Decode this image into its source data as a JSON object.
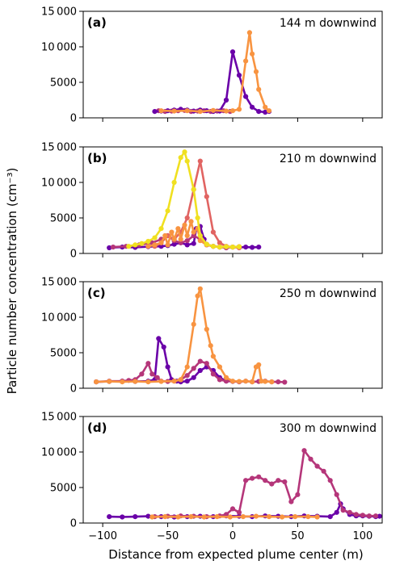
{
  "figure": {
    "xlabel": "Distance from expected plume center (m)",
    "ylabel": "Particle number concentration (cm⁻³)"
  },
  "chart_data": [
    {
      "type": "line",
      "panel_label": "(a)",
      "title": "144 m downwind",
      "xlim": [
        -115,
        115
      ],
      "ylim": [
        0,
        15000
      ],
      "x_ticks": [
        -100,
        -50,
        0,
        50,
        100
      ],
      "x_tick_labels": [
        "",
        "",
        "",
        "",
        ""
      ],
      "y_ticks": [
        0,
        5000,
        10000,
        15000
      ],
      "y_tick_labels": [
        "0",
        "5000",
        "10 000",
        "15 000"
      ],
      "series": [
        {
          "color": "#b5367a",
          "x": [
            -57,
            -52,
            -47,
            -42,
            -37,
            -32,
            -27,
            -22,
            -17,
            -12,
            -7,
            -2
          ],
          "y": [
            1000,
            900,
            950,
            1000,
            1050,
            900,
            950,
            1000,
            900,
            950,
            1000,
            900
          ]
        },
        {
          "color": "#6a00a8",
          "x": [
            -60,
            -55,
            -50,
            -45,
            -40,
            -35,
            -30,
            -25,
            -20,
            -15,
            -10,
            -5,
            0,
            5,
            10,
            15,
            20,
            25,
            28
          ],
          "y": [
            900,
            950,
            1000,
            1100,
            1200,
            1100,
            950,
            1100,
            1000,
            900,
            950,
            2500,
            9300,
            6000,
            3000,
            1500,
            900,
            800,
            900
          ]
        },
        {
          "color": "#f89441",
          "x": [
            -55,
            -45,
            -35,
            -25,
            -15,
            -5,
            0,
            5,
            10,
            13,
            15,
            18,
            20,
            25,
            28
          ],
          "y": [
            1000,
            950,
            1000,
            900,
            1050,
            950,
            1000,
            1200,
            8000,
            12000,
            9000,
            6500,
            4000,
            1500,
            1000
          ]
        }
      ]
    },
    {
      "type": "line",
      "panel_label": "(b)",
      "title": "210 m downwind",
      "xlim": [
        -115,
        115
      ],
      "ylim": [
        0,
        15000
      ],
      "x_ticks": [
        -100,
        -50,
        0,
        50,
        100
      ],
      "x_tick_labels": [
        "",
        "",
        "",
        "",
        ""
      ],
      "y_ticks": [
        0,
        5000,
        10000,
        15000
      ],
      "y_tick_labels": [
        "0",
        "5000",
        "10 000",
        "15 000"
      ],
      "series": [
        {
          "color": "#6a00a8",
          "x": [
            -95,
            -85,
            -75,
            -65,
            -55,
            -50,
            -45,
            -40,
            -35,
            -30,
            -28,
            -25,
            -22,
            -20,
            -15,
            -10,
            -5,
            0,
            5,
            10,
            15,
            20
          ],
          "y": [
            800,
            900,
            850,
            950,
            1000,
            1100,
            1300,
            1500,
            1200,
            1400,
            3500,
            3800,
            2000,
            1200,
            1000,
            900,
            950,
            900,
            850,
            900,
            850,
            900
          ]
        },
        {
          "color": "#b5367a",
          "x": [
            -92,
            -82,
            -72,
            -62,
            -55,
            -50,
            -45,
            -40,
            -35,
            -30,
            -25,
            -20,
            -15,
            -10,
            -5,
            0,
            5
          ],
          "y": [
            900,
            1000,
            1200,
            1500,
            2000,
            2500,
            1800,
            1500,
            1800,
            2500,
            2000,
            1300,
            1000,
            900,
            800,
            900,
            950
          ]
        },
        {
          "color": "#e16462",
          "x": [
            -60,
            -55,
            -50,
            -45,
            -40,
            -35,
            -30,
            -25,
            -20,
            -15,
            -10,
            -5,
            0,
            5
          ],
          "y": [
            1000,
            1500,
            2500,
            2000,
            3000,
            5000,
            9000,
            13000,
            8000,
            3000,
            1500,
            1000,
            900,
            800
          ]
        },
        {
          "color": "#f89441",
          "x": [
            -65,
            -60,
            -55,
            -52,
            -50,
            -47,
            -45,
            -42,
            -40,
            -37,
            -35,
            -32,
            -30,
            -27,
            -25,
            -20,
            -15,
            -10,
            -5,
            0,
            5
          ],
          "y": [
            1000,
            1200,
            1500,
            2500,
            1200,
            3000,
            2000,
            3500,
            2000,
            4000,
            2500,
            4500,
            3000,
            3500,
            1800,
            1200,
            1000,
            900,
            950,
            900,
            900
          ]
        },
        {
          "color": "#f0e020",
          "x": [
            -80,
            -75,
            -70,
            -65,
            -60,
            -55,
            -50,
            -45,
            -40,
            -37,
            -35,
            -30,
            -27,
            -25,
            -20,
            -15,
            -10,
            -5,
            0,
            5
          ],
          "y": [
            1000,
            1200,
            1400,
            1700,
            2200,
            3500,
            6000,
            10000,
            13500,
            14300,
            13000,
            9000,
            5000,
            2500,
            1300,
            1000,
            900,
            950,
            900,
            950
          ]
        }
      ]
    },
    {
      "type": "line",
      "panel_label": "(c)",
      "title": "250 m downwind",
      "xlim": [
        -115,
        115
      ],
      "ylim": [
        0,
        15000
      ],
      "x_ticks": [
        -100,
        -50,
        0,
        50,
        100
      ],
      "x_tick_labels": [
        "",
        "",
        "",
        "",
        ""
      ],
      "y_ticks": [
        0,
        5000,
        10000,
        15000
      ],
      "y_tick_labels": [
        "0",
        "5000",
        "10 000",
        "15 000"
      ],
      "series": [
        {
          "color": "#6a00a8",
          "x": [
            -105,
            -95,
            -85,
            -75,
            -65,
            -60,
            -57,
            -53,
            -50,
            -47,
            -43,
            -40,
            -35,
            -30,
            -25,
            -20,
            -15,
            -10,
            -5
          ],
          "y": [
            900,
            950,
            1000,
            950,
            1000,
            1200,
            7000,
            5800,
            3000,
            1200,
            1000,
            900,
            1000,
            1500,
            2500,
            3000,
            2500,
            1500,
            1000
          ]
        },
        {
          "color": "#b5367a",
          "x": [
            -105,
            -95,
            -85,
            -80,
            -75,
            -70,
            -65,
            -62,
            -58,
            -55,
            -50,
            -45,
            -40,
            -35,
            -30,
            -25,
            -20,
            -15,
            -10,
            -5,
            0,
            5,
            10,
            15,
            20,
            25,
            30,
            35,
            40
          ],
          "y": [
            900,
            1000,
            1000,
            1100,
            1200,
            2000,
            3500,
            2000,
            1500,
            1000,
            950,
            1000,
            1200,
            1800,
            2800,
            3800,
            3500,
            2000,
            1200,
            1000,
            950,
            900,
            1000,
            900,
            950,
            1000,
            900,
            900,
            850
          ]
        },
        {
          "color": "#f89441",
          "x": [
            -105,
            -95,
            -85,
            -75,
            -65,
            -55,
            -45,
            -40,
            -35,
            -30,
            -27,
            -25,
            -20,
            -17,
            -15,
            -10,
            -5,
            0,
            5,
            10,
            15,
            18,
            20,
            22,
            25,
            30
          ],
          "y": [
            900,
            950,
            900,
            950,
            900,
            950,
            1000,
            1200,
            3000,
            9000,
            13000,
            14000,
            8300,
            6000,
            4500,
            3000,
            1500,
            1000,
            950,
            1000,
            900,
            3000,
            3300,
            1000,
            950,
            900
          ]
        }
      ]
    },
    {
      "type": "line",
      "panel_label": "(d)",
      "title": "300 m downwind",
      "xlim": [
        -115,
        115
      ],
      "ylim": [
        0,
        15000
      ],
      "x_ticks": [
        -100,
        -50,
        0,
        50,
        100
      ],
      "x_tick_labels": [
        "−100",
        "−50",
        "0",
        "50",
        "100"
      ],
      "y_ticks": [
        0,
        5000,
        10000,
        15000
      ],
      "y_tick_labels": [
        "0",
        "5000",
        "10 000",
        "15 000"
      ],
      "series": [
        {
          "color": "#6a00a8",
          "x": [
            -95,
            -85,
            -75,
            -65,
            -55,
            -45,
            -35,
            -25,
            -15,
            -5,
            5,
            15,
            25,
            35,
            45,
            55,
            65,
            75,
            80,
            83,
            85,
            90,
            95,
            100,
            105,
            110,
            113
          ],
          "y": [
            900,
            850,
            900,
            950,
            900,
            850,
            900,
            950,
            900,
            1000,
            950,
            900,
            1000,
            950,
            900,
            1000,
            950,
            900,
            1500,
            2700,
            2000,
            1200,
            1000,
            1000,
            950,
            900,
            950
          ]
        },
        {
          "color": "#b5367a",
          "x": [
            -60,
            -50,
            -40,
            -30,
            -20,
            -10,
            -5,
            0,
            5,
            10,
            15,
            20,
            25,
            30,
            35,
            40,
            45,
            50,
            55,
            60,
            65,
            70,
            75,
            80,
            85,
            90,
            95,
            100,
            105,
            110
          ],
          "y": [
            900,
            950,
            1000,
            950,
            900,
            1000,
            1200,
            2000,
            1500,
            6000,
            6300,
            6500,
            6000,
            5500,
            6000,
            5800,
            3000,
            4000,
            10200,
            9000,
            8000,
            7300,
            6000,
            4000,
            1800,
            1500,
            1200,
            1100,
            1000,
            1000
          ]
        },
        {
          "color": "#f89441",
          "x": [
            -62,
            -52,
            -42,
            -32,
            -22,
            -12,
            -2,
            8,
            18,
            28,
            38,
            48,
            58,
            65
          ],
          "y": [
            850,
            900,
            850,
            900,
            850,
            900,
            850,
            900,
            950,
            900,
            850,
            900,
            900,
            850
          ]
        }
      ]
    }
  ]
}
